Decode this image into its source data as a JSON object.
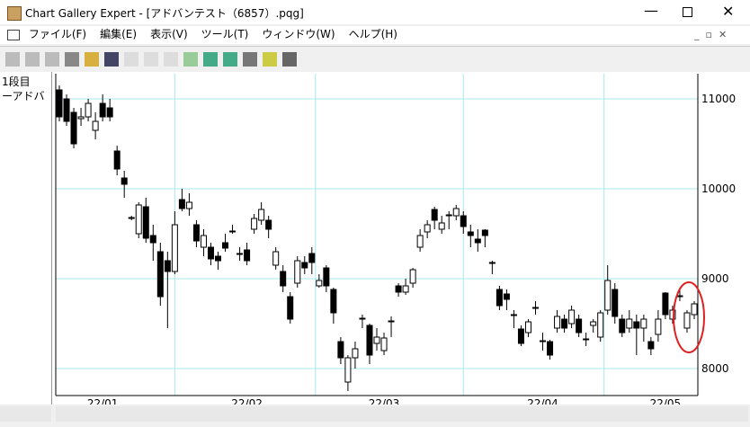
{
  "window": {
    "title": "Chart Gallery Expert - [アドバンテスト（6857）.pqg]"
  },
  "menu": [
    "ファイル(F)",
    "編集(E)",
    "表示(V)",
    "ツール(T)",
    "ウィンドウ(W)",
    "ヘルプ(H)"
  ],
  "panel": {
    "pane": "1段目",
    "series": "ーアドバ"
  },
  "chart_data": {
    "type": "candlestick",
    "categories": [
      null,
      null,
      null,
      null,
      null,
      null,
      "22/01",
      null,
      null,
      null,
      null,
      null,
      null,
      null,
      null,
      null,
      null,
      null,
      null,
      null,
      null,
      null,
      null,
      null,
      null,
      null,
      "22/02",
      null,
      null,
      null,
      null,
      null,
      null,
      null,
      null,
      null,
      null,
      null,
      null,
      null,
      null,
      null,
      null,
      null,
      null,
      "22/03",
      null,
      null,
      null,
      null,
      null,
      null,
      null,
      null,
      null,
      null,
      null,
      null,
      null,
      null,
      null,
      null,
      null,
      null,
      null,
      null,
      null,
      "22/04",
      null,
      null,
      null,
      null,
      null,
      null,
      null,
      null,
      null,
      null,
      null,
      null,
      null,
      null,
      null,
      null,
      "22/05",
      null,
      null,
      null,
      null
    ],
    "ohlc": [
      [
        11100,
        11150,
        10750,
        10800
      ],
      [
        11000,
        11050,
        10700,
        10750
      ],
      [
        10850,
        10900,
        10450,
        10500
      ],
      [
        10780,
        10900,
        10700,
        10800
      ],
      [
        10800,
        11000,
        10750,
        10950
      ],
      [
        10650,
        10850,
        10550,
        10750
      ],
      [
        10950,
        11050,
        10750,
        10800
      ],
      [
        10900,
        11000,
        10750,
        10800
      ],
      [
        10420,
        10480,
        10150,
        10220
      ],
      [
        10120,
        10200,
        9900,
        10050
      ],
      [
        9680,
        9700,
        9650,
        9670
      ],
      [
        9500,
        9850,
        9450,
        9820
      ],
      [
        9800,
        9900,
        9400,
        9450
      ],
      [
        9480,
        9600,
        9200,
        9400
      ],
      [
        9300,
        9400,
        8700,
        8800
      ],
      [
        9200,
        9300,
        8450,
        9080
      ],
      [
        9080,
        9750,
        9050,
        9600
      ],
      [
        9880,
        10000,
        9750,
        9780
      ],
      [
        9780,
        9950,
        9700,
        9850
      ],
      [
        9600,
        9650,
        9350,
        9420
      ],
      [
        9350,
        9550,
        9250,
        9480
      ],
      [
        9350,
        9400,
        9150,
        9220
      ],
      [
        9250,
        9300,
        9100,
        9200
      ],
      [
        9400,
        9500,
        9300,
        9340
      ],
      [
        9520,
        9600,
        9500,
        9530
      ],
      [
        9270,
        9350,
        9200,
        9280
      ],
      [
        9320,
        9400,
        9150,
        9200
      ],
      [
        9550,
        9720,
        9500,
        9670
      ],
      [
        9650,
        9850,
        9600,
        9770
      ],
      [
        9650,
        9700,
        9450,
        9550
      ],
      [
        9150,
        9350,
        9100,
        9300
      ],
      [
        9080,
        9150,
        8850,
        8920
      ],
      [
        8800,
        8850,
        8500,
        8550
      ],
      [
        8950,
        9250,
        8900,
        9200
      ],
      [
        9180,
        9250,
        9050,
        9120
      ],
      [
        9280,
        9350,
        9050,
        9180
      ],
      [
        8920,
        9050,
        8900,
        8980
      ],
      [
        9120,
        9150,
        8850,
        8920
      ],
      [
        8880,
        8900,
        8500,
        8620
      ],
      [
        8300,
        8350,
        8050,
        8120
      ],
      [
        7850,
        8150,
        7750,
        8120
      ],
      [
        8120,
        8300,
        8000,
        8220
      ],
      [
        8550,
        8600,
        8450,
        8560
      ],
      [
        8480,
        8500,
        8050,
        8150
      ],
      [
        8280,
        8450,
        8200,
        8350
      ],
      [
        8200,
        8400,
        8150,
        8340
      ],
      [
        8520,
        8580,
        8350,
        8530
      ],
      [
        8920,
        8950,
        8800,
        8850
      ],
      [
        8850,
        9000,
        8820,
        8920
      ],
      [
        8950,
        9120,
        8900,
        9100
      ],
      [
        9350,
        9550,
        9300,
        9480
      ],
      [
        9520,
        9650,
        9450,
        9600
      ],
      [
        9770,
        9800,
        9550,
        9650
      ],
      [
        9550,
        9700,
        9500,
        9620
      ],
      [
        9700,
        9750,
        9550,
        9710
      ],
      [
        9700,
        9820,
        9650,
        9780
      ],
      [
        9700,
        9750,
        9500,
        9580
      ],
      [
        9520,
        9600,
        9350,
        9480
      ],
      [
        9440,
        9550,
        9300,
        9400
      ],
      [
        9540,
        9550,
        9350,
        9480
      ],
      [
        9180,
        9200,
        9050,
        9170
      ],
      [
        8880,
        8920,
        8650,
        8700
      ],
      [
        8830,
        8880,
        8650,
        8770
      ],
      [
        8600,
        8650,
        8450,
        8590
      ],
      [
        8440,
        8480,
        8250,
        8280
      ],
      [
        8400,
        8550,
        8350,
        8520
      ],
      [
        8670,
        8750,
        8600,
        8680
      ],
      [
        8300,
        8400,
        8200,
        8310
      ],
      [
        8300,
        8320,
        8100,
        8150
      ],
      [
        8450,
        8650,
        8400,
        8580
      ],
      [
        8550,
        8600,
        8400,
        8450
      ],
      [
        8500,
        8700,
        8450,
        8650
      ],
      [
        8550,
        8600,
        8350,
        8400
      ],
      [
        8320,
        8400,
        8250,
        8330
      ],
      [
        8480,
        8550,
        8400,
        8520
      ],
      [
        8350,
        8650,
        8300,
        8620
      ],
      [
        8650,
        9150,
        8600,
        8980
      ],
      [
        8880,
        8950,
        8500,
        8580
      ],
      [
        8550,
        8600,
        8350,
        8400
      ],
      [
        8450,
        8650,
        8400,
        8550
      ],
      [
        8520,
        8600,
        8150,
        8450
      ],
      [
        8450,
        8600,
        8300,
        8550
      ],
      [
        8300,
        8350,
        8150,
        8220
      ],
      [
        8380,
        8650,
        8300,
        8550
      ],
      [
        8840,
        8850,
        8550,
        8600
      ],
      [
        8550,
        8700,
        8500,
        8650
      ],
      [
        8800,
        8900,
        8750,
        8810
      ],
      [
        8450,
        8650,
        8400,
        8620
      ],
      [
        8600,
        8750,
        8550,
        8720
      ]
    ],
    "up_color": "#ffffff",
    "down_color": "#000000",
    "ylim": [
      7700,
      11280
    ],
    "yticks": [
      8000,
      9000,
      10000,
      11000
    ],
    "grid": true
  }
}
